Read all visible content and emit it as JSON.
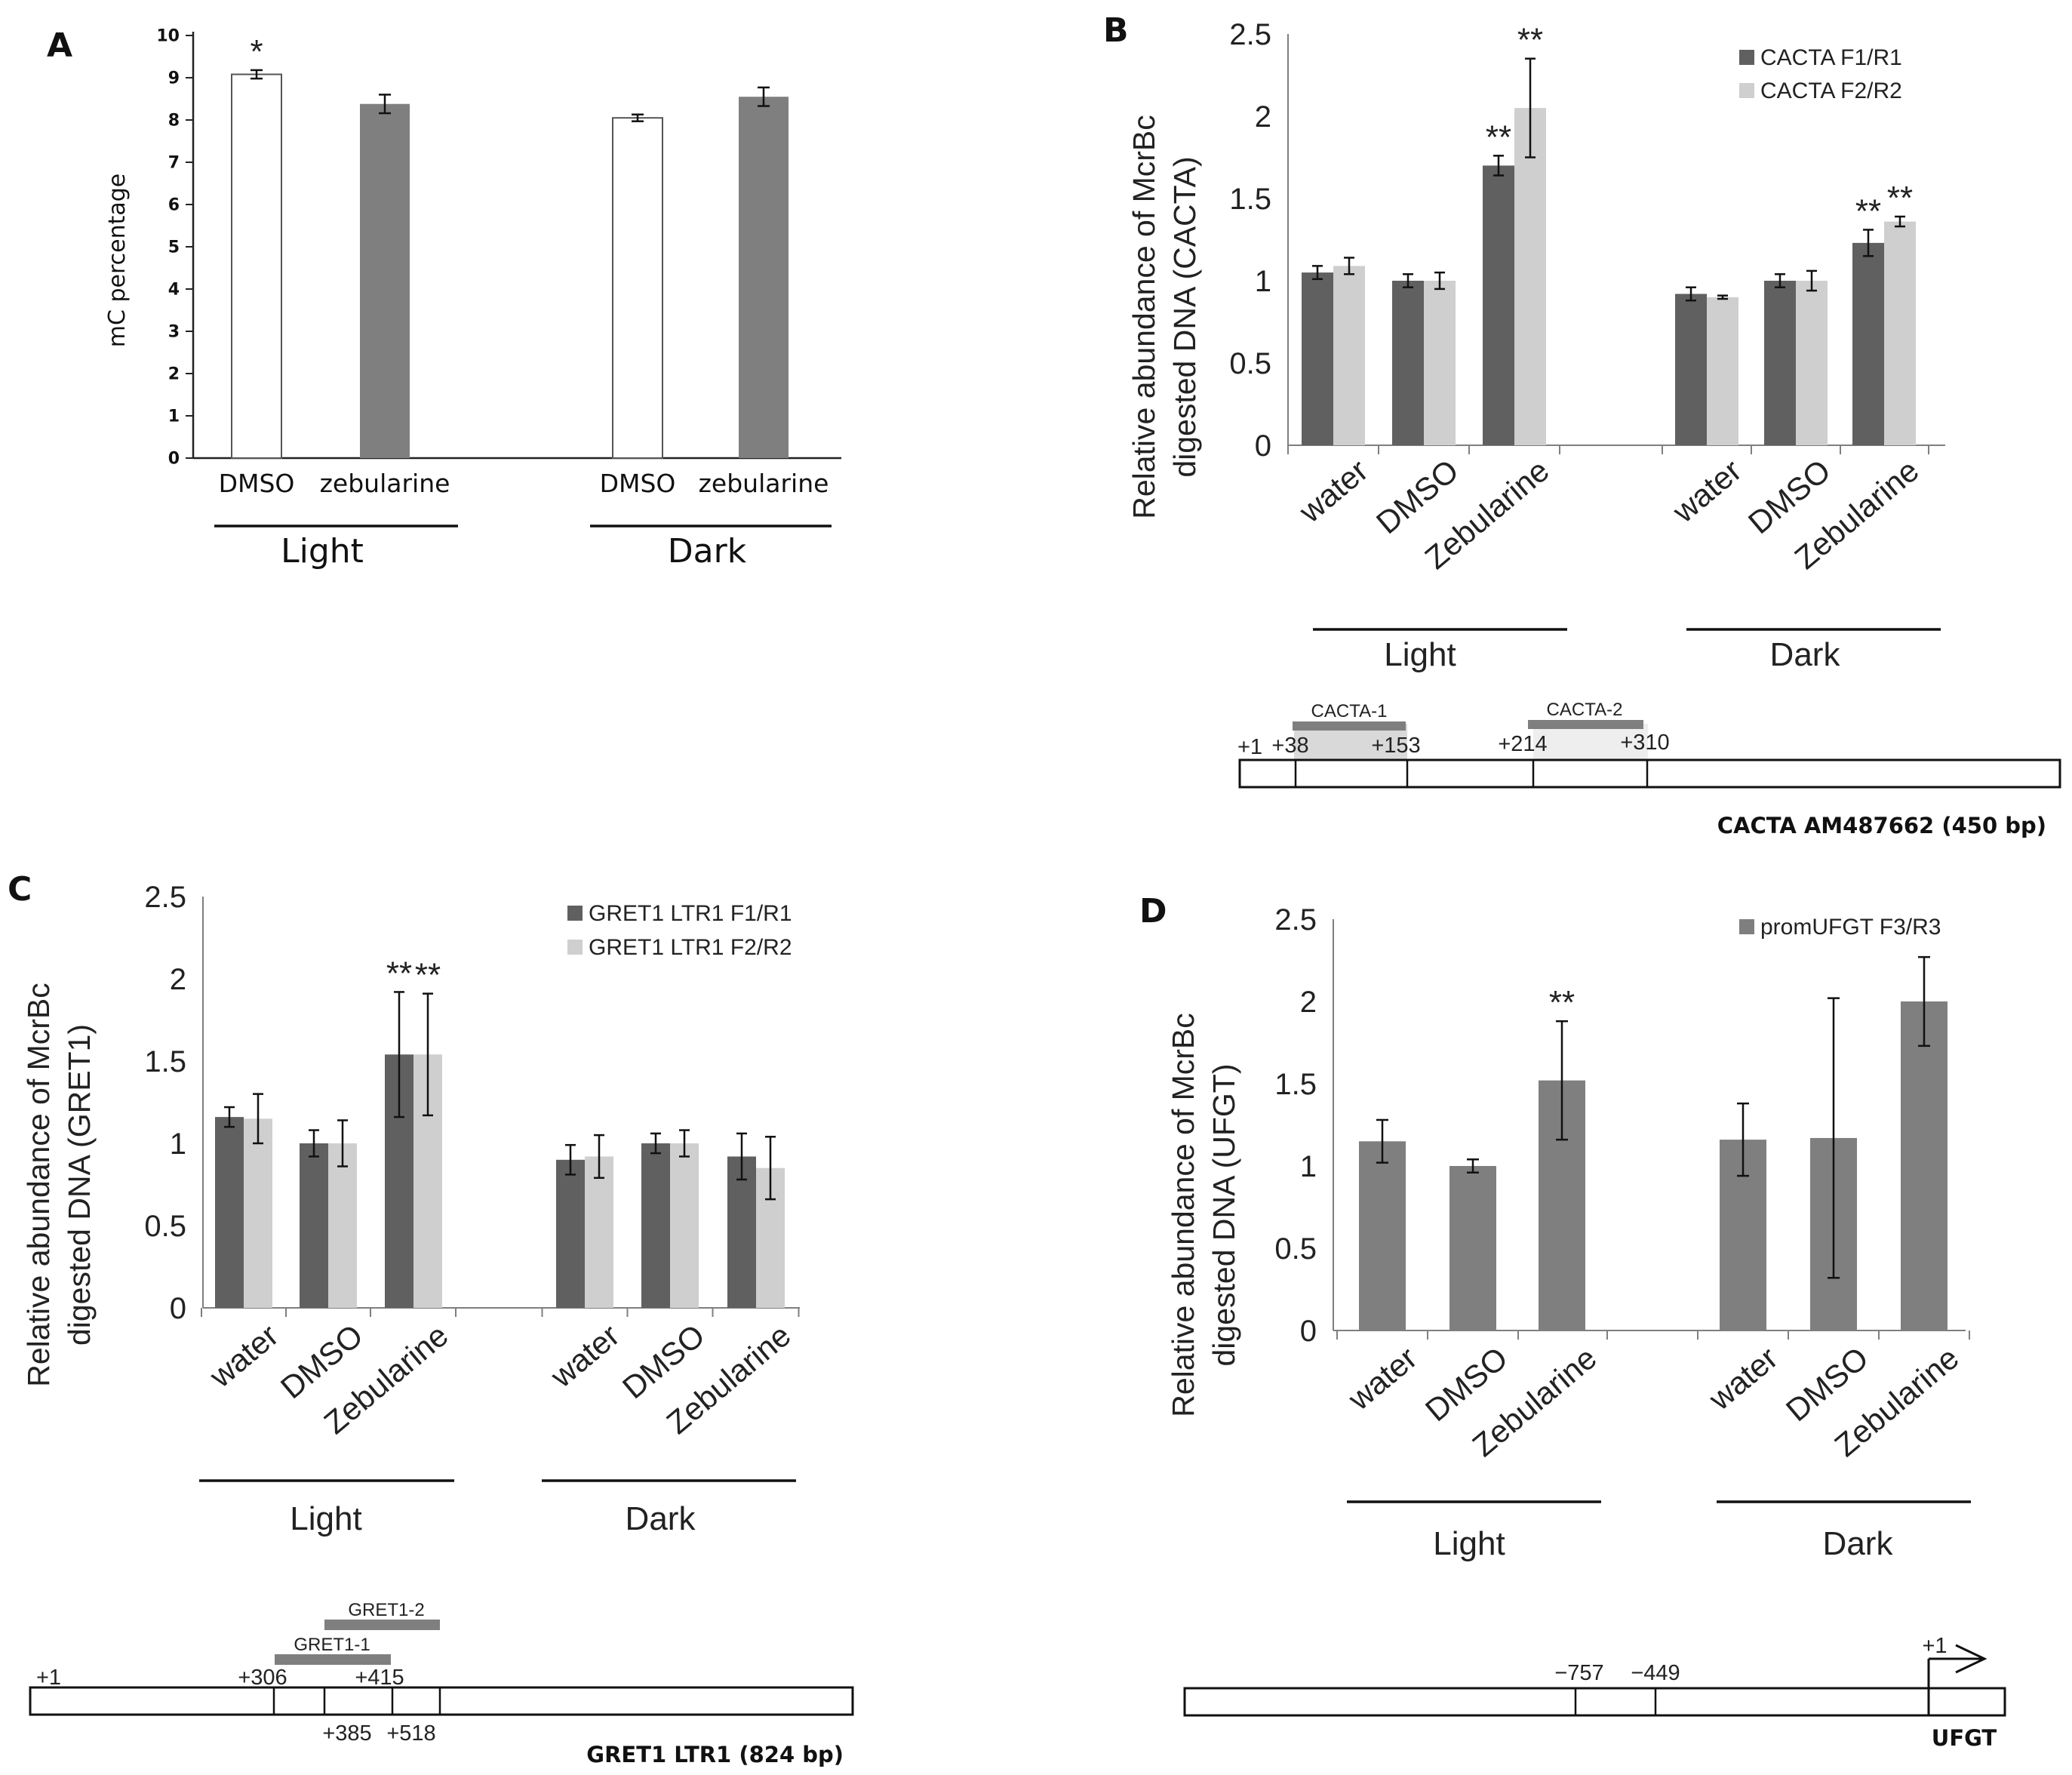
{
  "panels": {
    "a": {
      "letter": "A",
      "group_labels": [
        "Light",
        "Dark"
      ]
    },
    "b": {
      "letter": "B",
      "group_labels": [
        "Light",
        "Dark"
      ],
      "map": {
        "segments": [
          "CACTA-1",
          "CACTA-2"
        ],
        "positions": [
          "+1",
          "+38",
          "+153",
          "+214",
          "+310"
        ],
        "caption": "CACTA AM487662 (450 bp)"
      }
    },
    "c": {
      "letter": "C",
      "group_labels": [
        "Light",
        "Dark"
      ],
      "map": {
        "segments": [
          "GRET1-2",
          "GRET1-1"
        ],
        "positions_top": [
          "+1",
          "+306",
          "+415"
        ],
        "positions_bottom": [
          "+385",
          "+518"
        ],
        "caption": "GRET1 LTR1 (824 bp)"
      }
    },
    "d": {
      "letter": "D",
      "group_labels": [
        "Light",
        "Dark"
      ],
      "map": {
        "positions": [
          "−757",
          "−449"
        ],
        "tss_label": "+1",
        "caption": "UFGT"
      }
    }
  },
  "colors": {
    "dark_bar": "#606060",
    "light_bar": "#cfcfcf",
    "mid_bar": "#7f7f7f",
    "open_bar": "#ffffff"
  },
  "chart_data": [
    {
      "id": "a",
      "type": "bar",
      "title": "",
      "ylabel": "mC percentage",
      "xlabel": "",
      "ylim": [
        0,
        10
      ],
      "yticks": [
        "0",
        "1",
        "2",
        "3",
        "4",
        "5",
        "6",
        "7",
        "8",
        "9",
        "10"
      ],
      "categories": [
        "DMSO",
        "zebularine",
        "DMSO",
        "zebularine"
      ],
      "groups": [
        "Light",
        "Light",
        "Dark",
        "Dark"
      ],
      "series": [
        {
          "name": "mC percentage",
          "values": [
            9.08,
            8.38,
            8.05,
            8.55
          ],
          "errors": [
            0.1,
            0.22,
            0.08,
            0.22
          ],
          "fills": [
            "#ffffff",
            "#7f7f7f",
            "#ffffff",
            "#7f7f7f"
          ]
        }
      ],
      "annotations": [
        "*",
        "",
        "",
        ""
      ]
    },
    {
      "id": "b",
      "type": "bar",
      "title": "",
      "ylabel": [
        "Relative abundance of McrBc",
        "digested DNA (CACTA)"
      ],
      "xlabel": "",
      "ylim": [
        0,
        2.5
      ],
      "yticks": [
        "0",
        "0.5",
        "1",
        "1.5",
        "2",
        "2.5"
      ],
      "categories": [
        "water",
        "DMSO",
        "Zebularine",
        "water",
        "DMSO",
        "Zebularine"
      ],
      "groups": [
        "Light",
        "Light",
        "Light",
        "Dark",
        "Dark",
        "Dark"
      ],
      "series": [
        {
          "name": "CACTA F1/R1",
          "values": [
            1.05,
            1.0,
            1.7,
            0.92,
            1.0,
            1.23
          ],
          "errors": [
            0.04,
            0.04,
            0.06,
            0.04,
            0.04,
            0.08
          ],
          "stars": [
            "",
            "",
            "**",
            "",
            "",
            "**"
          ]
        },
        {
          "name": "CACTA F2/R2",
          "values": [
            1.09,
            1.0,
            2.05,
            0.9,
            1.0,
            1.36
          ],
          "errors": [
            0.05,
            0.05,
            0.3,
            0.01,
            0.06,
            0.03
          ],
          "stars": [
            "",
            "",
            "**",
            "",
            "",
            "**"
          ]
        }
      ]
    },
    {
      "id": "c",
      "type": "bar",
      "title": "",
      "ylabel": [
        "Relative abundance of McrBc",
        "digested DNA (GRET1)"
      ],
      "xlabel": "",
      "ylim": [
        0,
        2.5
      ],
      "yticks": [
        "0",
        "0.5",
        "1",
        "1.5",
        "2",
        "2.5"
      ],
      "categories": [
        "water",
        "DMSO",
        "Zebularine",
        "water",
        "DMSO",
        "Zebularine"
      ],
      "groups": [
        "Light",
        "Light",
        "Light",
        "Dark",
        "Dark",
        "Dark"
      ],
      "series": [
        {
          "name": "GRET1 LTR1 F1/R1",
          "values": [
            1.16,
            1.0,
            1.54,
            0.9,
            1.0,
            0.92
          ],
          "errors": [
            0.06,
            0.08,
            0.38,
            0.09,
            0.06,
            0.14
          ],
          "stars": [
            "",
            "",
            "**",
            "",
            "",
            ""
          ]
        },
        {
          "name": "GRET1 LTR1 F2/R2",
          "values": [
            1.15,
            1.0,
            1.54,
            0.92,
            1.0,
            0.85
          ],
          "errors": [
            0.15,
            0.14,
            0.37,
            0.13,
            0.08,
            0.19
          ],
          "stars": [
            "",
            "",
            "**",
            "",
            "",
            ""
          ]
        }
      ]
    },
    {
      "id": "d",
      "type": "bar",
      "title": "",
      "ylabel": [
        "Relative abundance of McrBc",
        "digested DNA (UFGT)"
      ],
      "xlabel": "",
      "ylim": [
        0,
        2.5
      ],
      "yticks": [
        "0",
        "0.5",
        "1",
        "1.5",
        "2",
        "2.5"
      ],
      "categories": [
        "water",
        "DMSO",
        "Zebularine",
        "water",
        "DMSO",
        "Zebularine"
      ],
      "groups": [
        "Light",
        "Light",
        "Light",
        "Dark",
        "Dark",
        "Dark"
      ],
      "series": [
        {
          "name": "promUFGT F3/R3",
          "values": [
            1.15,
            1.0,
            1.52,
            1.16,
            1.17,
            2.0
          ],
          "errors": [
            0.13,
            0.04,
            0.36,
            0.22,
            0.85,
            0.27
          ],
          "stars": [
            "",
            "",
            "**",
            "",
            "",
            ""
          ]
        }
      ]
    }
  ]
}
